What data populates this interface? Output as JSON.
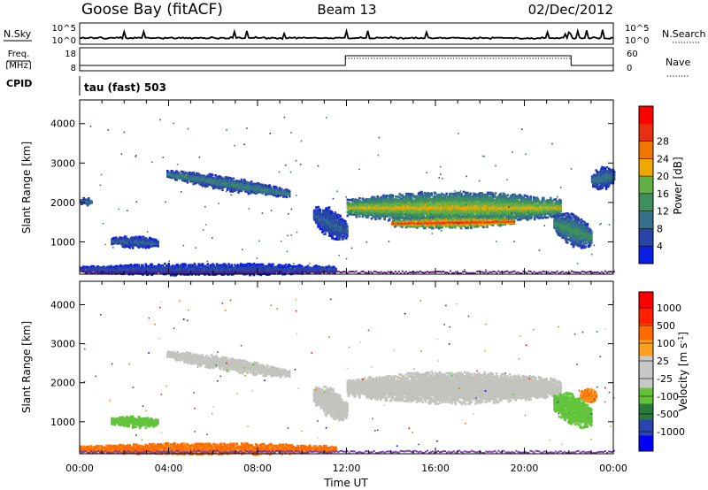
{
  "header": {
    "station": "Goose Bay (fitACF)",
    "beam": "Beam 13",
    "date": "02/Dec/2012"
  },
  "strip_panels": {
    "nsky_label": "N.Sky",
    "nsky_tick_top": "10^5",
    "nsky_tick_bottom": "10^0",
    "nsearch_label": "N.Search",
    "freq_label_line1": "Freq.",
    "freq_label_line2": "[MHz]",
    "freq_ticks": [
      "18",
      "8"
    ],
    "nave_label": "Nave",
    "nave_ticks": [
      "60",
      "0"
    ],
    "cpid_label": "CPID",
    "cpid_value": "tau (fast) 503"
  },
  "colors": {
    "power_scale": [
      "#0a1ee6",
      "#2a44a8",
      "#34728c",
      "#3f8f5e",
      "#62b045",
      "#f0a800",
      "#f07800",
      "#e83010",
      "#ff0000"
    ],
    "velocity_scale": [
      "#0000ff",
      "#2a44b0",
      "#2a7a3e",
      "#63c43c",
      "#c8c8c8",
      "#c8c8c8",
      "#ff9f20",
      "#ff6a00",
      "#ff2000",
      "#ff0000"
    ],
    "scatter_gray": "#c3c3bf"
  },
  "chart_data": [
    {
      "type": "heatmap",
      "name": "power",
      "ylabel": "Slant Range [km]",
      "xlim_hours": [
        0,
        24
      ],
      "ylim": [
        180,
        4600
      ],
      "yticks": [
        1000,
        2000,
        3000,
        4000
      ],
      "colorbar": {
        "label": "Power [dB]",
        "ticks": [
          "4",
          "8",
          "12",
          "16",
          "20",
          "24",
          "28"
        ],
        "range": [
          0,
          32
        ]
      },
      "blobs": [
        {
          "t0": 3.9,
          "t1": 9.4,
          "r_start": 2750,
          "r_end": 2250,
          "width": 300,
          "level": 0.35
        },
        {
          "t0": 10.5,
          "t1": 12.0,
          "r_start": 1700,
          "r_end": 1300,
          "width": 650,
          "level": 0.25
        },
        {
          "t0": 12.0,
          "t1": 21.6,
          "r_start": 1900,
          "r_end": 1900,
          "width": 700,
          "level": 0.6
        },
        {
          "t0": 14.0,
          "t1": 19.5,
          "r_start": 1500,
          "r_end": 1550,
          "width": 260,
          "level": 0.85
        },
        {
          "t0": 21.3,
          "t1": 23.0,
          "r_start": 1500,
          "r_end": 1150,
          "width": 700,
          "level": 0.4
        },
        {
          "t0": 23.0,
          "t1": 24.0,
          "r_start": 2600,
          "r_end": 2700,
          "width": 500,
          "level": 0.3
        },
        {
          "t0": 0.0,
          "t1": 11.5,
          "r_start": 330,
          "r_end": 330,
          "width": 260,
          "level": 0.2
        },
        {
          "t0": 1.4,
          "t1": 3.5,
          "r_start": 1050,
          "r_end": 1000,
          "width": 260,
          "level": 0.25
        },
        {
          "t0": 0.0,
          "t1": 0.5,
          "r_start": 2050,
          "r_end": 2050,
          "width": 160,
          "level": 0.3
        }
      ]
    },
    {
      "type": "heatmap",
      "name": "velocity",
      "xlabel": "Time UT",
      "ylabel": "Slant Range [km]",
      "xlim_hours": [
        0,
        24
      ],
      "xticks": [
        "00:00",
        "04:00",
        "08:00",
        "12:00",
        "16:00",
        "20:00",
        "00:00"
      ],
      "ylim": [
        180,
        4600
      ],
      "yticks": [
        1000,
        2000,
        3000,
        4000
      ],
      "colorbar": {
        "label": "Velocity [m s^-1]",
        "ticks": [
          "1000",
          "500",
          "100",
          "25",
          "-25",
          "-100",
          "-500",
          "-1000"
        ]
      },
      "blobs": [
        {
          "t0": 3.9,
          "t1": 9.4,
          "r_start": 2750,
          "r_end": 2250,
          "width": 300,
          "level": 0.45
        },
        {
          "t0": 10.5,
          "t1": 12.0,
          "r_start": 1700,
          "r_end": 1300,
          "width": 650,
          "level": 0.5
        },
        {
          "t0": 12.0,
          "t1": 21.6,
          "r_start": 1900,
          "r_end": 1900,
          "width": 700,
          "level": 0.48
        },
        {
          "t0": 21.3,
          "t1": 23.0,
          "r_start": 1500,
          "r_end": 1150,
          "width": 700,
          "level": 0.35
        },
        {
          "t0": 22.5,
          "t1": 23.2,
          "r_start": 1700,
          "r_end": 1700,
          "width": 300,
          "level": 0.7
        },
        {
          "t0": 0.0,
          "t1": 11.5,
          "r_start": 330,
          "r_end": 330,
          "width": 260,
          "level": 0.72
        },
        {
          "t0": 1.4,
          "t1": 3.5,
          "r_start": 1050,
          "r_end": 1000,
          "width": 260,
          "level": 0.35
        }
      ]
    }
  ]
}
